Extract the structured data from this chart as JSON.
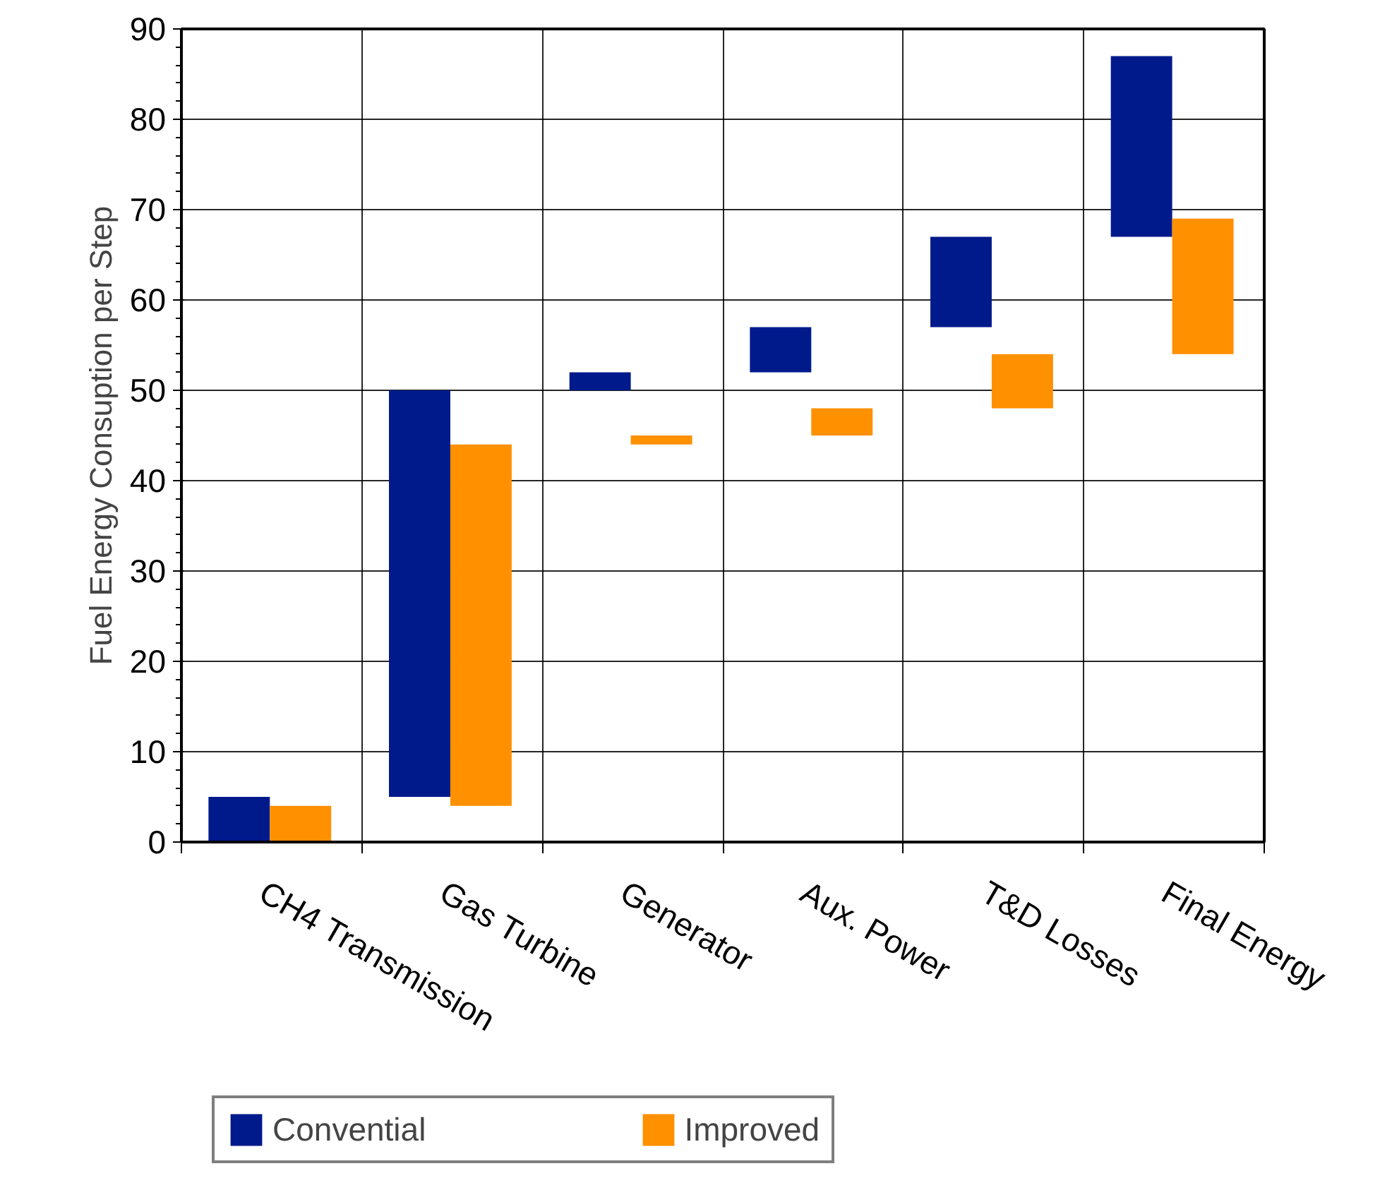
{
  "chart_data": {
    "type": "bar",
    "ylabel": "Fuel Energy Consuption per Step",
    "categories": [
      "CH4 Transmission",
      "Gas Turbine",
      "Generator",
      "Aux. Power",
      "T&D Losses",
      "Final Energy"
    ],
    "series": [
      {
        "name": "Convential",
        "color": "#001a8c",
        "base": [
          0,
          5,
          50,
          52,
          57,
          67
        ],
        "values": [
          5,
          45,
          2,
          5,
          10,
          20
        ]
      },
      {
        "name": "Improved",
        "color": "#ff9000",
        "base": [
          0,
          4,
          44,
          45,
          48,
          54
        ],
        "values": [
          4,
          40,
          1,
          3,
          6,
          15
        ]
      }
    ],
    "ylim": [
      0,
      90
    ],
    "yticks": [
      0,
      10,
      20,
      30,
      40,
      50,
      60,
      70,
      80,
      90
    ],
    "grid": true,
    "legend": "bottom"
  }
}
